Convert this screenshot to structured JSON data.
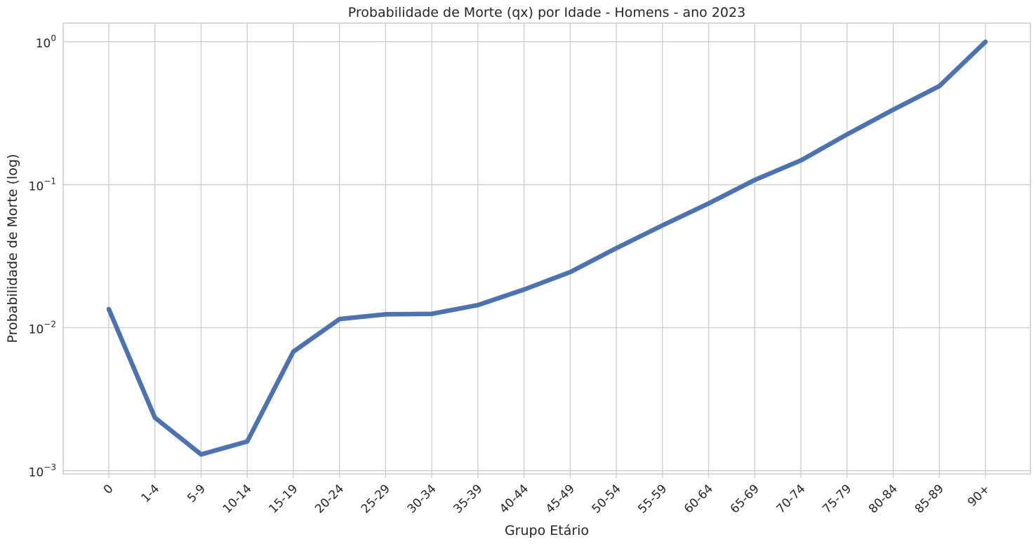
{
  "chart_data": {
    "type": "line",
    "title": "Probabilidade de Morte (qx) por Idade - Homens - ano 2023",
    "xlabel": "Grupo Etário",
    "ylabel": "Probabilidade de Morte (log)",
    "yscale": "log",
    "ylim": [
      0.00095,
      1.35
    ],
    "grid": true,
    "categories": [
      "0",
      "1-4",
      "5-9",
      "10-14",
      "15-19",
      "20-24",
      "25-29",
      "30-34",
      "35-39",
      "40-44",
      "45-49",
      "50-54",
      "55-59",
      "60-64",
      "65-69",
      "70-74",
      "75-79",
      "80-84",
      "85-89",
      "90+"
    ],
    "series": [
      {
        "values": [
          0.0135,
          0.00235,
          0.0013,
          0.0016,
          0.0068,
          0.0115,
          0.0124,
          0.0125,
          0.0144,
          0.0185,
          0.0245,
          0.036,
          0.052,
          0.074,
          0.108,
          0.148,
          0.225,
          0.335,
          0.49,
          1.0
        ],
        "color": "#4c72b0"
      }
    ],
    "yticks": [
      {
        "value": 0.001,
        "base": "10",
        "exp": "−3"
      },
      {
        "value": 0.01,
        "base": "10",
        "exp": "−2"
      },
      {
        "value": 0.1,
        "base": "10",
        "exp": "−1"
      },
      {
        "value": 1,
        "base": "10",
        "exp": "0"
      }
    ]
  }
}
